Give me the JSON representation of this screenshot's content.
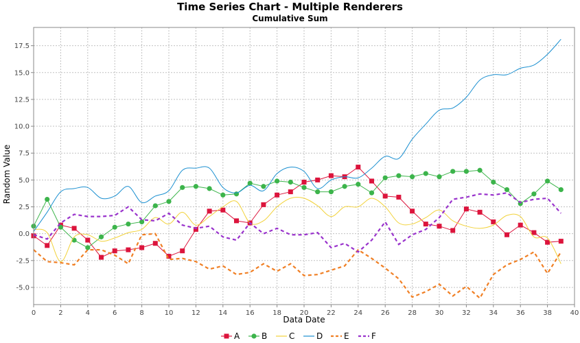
{
  "chart_data": {
    "type": "line",
    "title": "Time Series Chart - Multiple Renderers",
    "subtitle": "Cumulative Sum",
    "xlabel": "Data Date",
    "ylabel": "Random Value",
    "xlim": [
      0,
      40
    ],
    "ylim": [
      -6.6,
      19.2
    ],
    "xticks": [
      0,
      2,
      4,
      6,
      8,
      10,
      12,
      14,
      16,
      18,
      20,
      22,
      24,
      26,
      28,
      30,
      32,
      34,
      36,
      38,
      40
    ],
    "xtick_labels": [
      "0",
      "2",
      "4",
      "6",
      "8",
      "10",
      "12",
      "14",
      "16",
      "18",
      "20",
      "22",
      "24",
      "26",
      "28",
      "30",
      "32",
      "34",
      "36",
      "38",
      "40"
    ],
    "yticks": [
      -5.0,
      -2.5,
      0.0,
      2.5,
      5.0,
      7.5,
      10.0,
      12.5,
      15.0,
      17.5
    ],
    "ytick_labels": [
      "-5.0",
      "-2.5",
      "0.0",
      "2.5",
      "5.0",
      "7.5",
      "10.0",
      "12.5",
      "15.0",
      "17.5"
    ],
    "grid": true,
    "legend_position": "bottom",
    "x": [
      0,
      1,
      2,
      3,
      4,
      5,
      6,
      7,
      8,
      9,
      10,
      11,
      12,
      13,
      14,
      15,
      16,
      17,
      18,
      19,
      20,
      21,
      22,
      23,
      24,
      25,
      26,
      27,
      28,
      29,
      30,
      31,
      32,
      33,
      34,
      35,
      36,
      37,
      38,
      39
    ],
    "series": [
      {
        "name": "A",
        "color": "#dc143c",
        "style": "line-square",
        "values": [
          -0.2,
          -1.1,
          0.8,
          0.5,
          -0.6,
          -2.2,
          -1.6,
          -1.5,
          -1.3,
          -0.9,
          -2.1,
          -1.6,
          0.4,
          2.1,
          2.2,
          1.2,
          1.0,
          2.7,
          3.6,
          3.9,
          4.8,
          5.0,
          5.4,
          5.3,
          6.2,
          4.9,
          3.5,
          3.4,
          2.1,
          0.9,
          0.7,
          0.3,
          2.3,
          2.0,
          1.1,
          -0.1,
          0.8,
          0.1,
          -0.8,
          -0.7
        ]
      },
      {
        "name": "B",
        "color": "#3cb44b",
        "style": "line-circle",
        "values": [
          0.7,
          3.2,
          0.6,
          -0.6,
          -1.3,
          -0.3,
          0.6,
          0.9,
          1.1,
          2.6,
          3.0,
          4.3,
          4.4,
          4.2,
          3.6,
          3.7,
          4.7,
          4.4,
          4.9,
          4.8,
          4.3,
          3.9,
          3.9,
          4.4,
          4.6,
          3.8,
          5.2,
          5.4,
          5.3,
          5.6,
          5.3,
          5.8,
          5.8,
          5.9,
          4.8,
          4.1,
          2.8,
          3.7,
          4.9,
          4.1
        ]
      },
      {
        "name": "C",
        "color": "#f2d23a",
        "style": "spline",
        "values": [
          0.4,
          0.1,
          -2.6,
          -0.3,
          -0.1,
          -0.7,
          -0.4,
          0.1,
          0.4,
          1.5,
          0.9,
          2.0,
          0.8,
          1.6,
          2.5,
          3.0,
          1.0,
          1.2,
          2.5,
          3.3,
          3.3,
          2.6,
          1.6,
          2.5,
          2.5,
          3.3,
          2.5,
          1.0,
          0.9,
          1.5,
          2.2,
          1.2,
          0.7,
          0.5,
          0.8,
          1.7,
          1.6,
          -0.3,
          -0.4,
          -2.8
        ]
      },
      {
        "name": "D",
        "color": "#1a8fd0",
        "style": "spline",
        "values": [
          0.2,
          2.0,
          3.9,
          4.2,
          4.3,
          3.3,
          3.5,
          4.4,
          2.9,
          3.5,
          4.0,
          5.9,
          6.1,
          6.1,
          4.3,
          3.8,
          4.5,
          4.0,
          5.6,
          6.2,
          5.8,
          4.2,
          5.0,
          5.3,
          5.2,
          6.1,
          7.2,
          7.0,
          8.8,
          10.2,
          11.5,
          11.7,
          12.7,
          14.3,
          14.8,
          14.8,
          15.4,
          15.7,
          16.7,
          18.1
        ]
      },
      {
        "name": "E",
        "color": "#f07f24",
        "style": "dashed",
        "values": [
          -1.5,
          -2.6,
          -2.7,
          -2.9,
          -1.5,
          -1.5,
          -2.0,
          -2.8,
          -0.1,
          0.0,
          -2.4,
          -2.3,
          -2.6,
          -3.3,
          -3.0,
          -3.8,
          -3.6,
          -2.8,
          -3.5,
          -2.8,
          -3.9,
          -3.8,
          -3.4,
          -3.0,
          -1.5,
          -2.3,
          -3.2,
          -4.2,
          -5.9,
          -5.4,
          -4.7,
          -5.8,
          -4.9,
          -6.0,
          -3.8,
          -2.9,
          -2.4,
          -1.7,
          -3.7,
          -1.7
        ]
      },
      {
        "name": "F",
        "color": "#9932cc",
        "style": "dashed",
        "values": [
          -0.1,
          -0.5,
          1.0,
          1.8,
          1.6,
          1.6,
          1.7,
          2.5,
          1.3,
          1.2,
          1.9,
          0.8,
          0.5,
          0.7,
          -0.3,
          -0.6,
          1.0,
          0.0,
          0.5,
          -0.1,
          -0.1,
          0.1,
          -1.3,
          -0.9,
          -1.7,
          -0.6,
          1.1,
          -1.0,
          -0.1,
          0.4,
          1.5,
          3.2,
          3.4,
          3.7,
          3.6,
          3.8,
          2.9,
          3.2,
          3.3,
          1.9
        ]
      }
    ]
  }
}
